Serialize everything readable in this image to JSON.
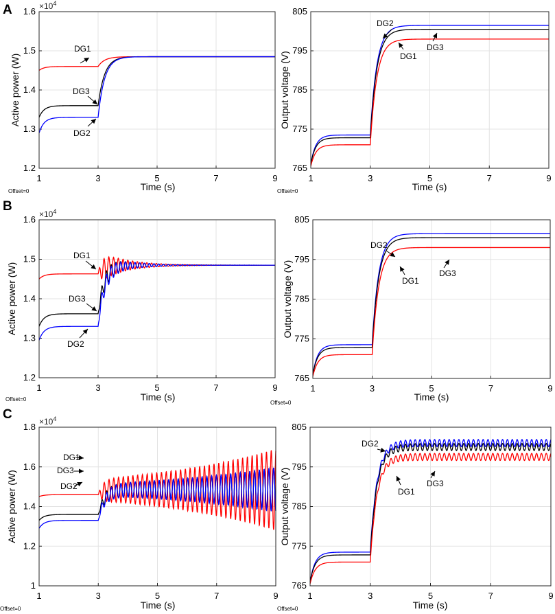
{
  "figure": {
    "description_labels": [
      "A",
      "B",
      "C"
    ]
  },
  "chart_data": [
    {
      "panel": "A",
      "side": "left",
      "type": "line",
      "scenario": "smooth",
      "xlabel": "Time (s)",
      "ylabel": "Active power (W)",
      "exponent_label": "×10^4",
      "xlim": [
        1,
        9
      ],
      "ylim": [
        1.2,
        1.6
      ],
      "xticks": [
        "1",
        "3",
        "5",
        "7",
        "9"
      ],
      "yticks": [
        "1.2",
        "1.3",
        "1.4",
        "1.5",
        "1.6"
      ],
      "offset_label": "Offset=0",
      "series": [
        {
          "name": "DG1",
          "color": "#ff0000",
          "before": 1.46,
          "start": 1.45,
          "after": 1.485
        },
        {
          "name": "DG3",
          "color": "#000000",
          "before": 1.36,
          "start": 1.33,
          "after": 1.485
        },
        {
          "name": "DG2",
          "color": "#0000ff",
          "before": 1.33,
          "start": 1.29,
          "after": 1.485
        }
      ],
      "annotations": [
        {
          "text": "DG1"
        },
        {
          "text": "DG3"
        },
        {
          "text": "DG2"
        }
      ]
    },
    {
      "panel": "A",
      "side": "right",
      "type": "line",
      "scenario": "smooth",
      "xlabel": "Time (s)",
      "ylabel": "Output voltage (V)",
      "xlim": [
        1,
        9
      ],
      "ylim": [
        765,
        805
      ],
      "xticks": [
        "1",
        "3",
        "5",
        "7",
        "9"
      ],
      "yticks": [
        "765",
        "775",
        "785",
        "795",
        "805"
      ],
      "offset_label": "Offset=0",
      "series": [
        {
          "name": "DG2",
          "color": "#0000ff",
          "before": 773.5,
          "start": 766,
          "after": 801.5
        },
        {
          "name": "DG3",
          "color": "#000000",
          "before": 772.8,
          "start": 766,
          "after": 800.5
        },
        {
          "name": "DG1",
          "color": "#ff0000",
          "before": 771,
          "start": 765.5,
          "after": 798
        }
      ],
      "annotations": [
        {
          "text": "DG2"
        },
        {
          "text": "DG1"
        },
        {
          "text": "DG3"
        }
      ]
    },
    {
      "panel": "B",
      "side": "left",
      "type": "line",
      "scenario": "damped",
      "xlabel": "Time (s)",
      "ylabel": "Active power (W)",
      "exponent_label": "×10^4",
      "xlim": [
        1,
        9
      ],
      "ylim": [
        1.2,
        1.6
      ],
      "xticks": [
        "1",
        "3",
        "5",
        "7",
        "9"
      ],
      "yticks": [
        "1.2",
        "1.3",
        "1.4",
        "1.5",
        "1.6"
      ],
      "offset_label": "Offset=0",
      "series": [
        {
          "name": "DG1",
          "color": "#ff0000",
          "before": 1.463,
          "start": 1.45,
          "after": 1.485
        },
        {
          "name": "DG3",
          "color": "#000000",
          "before": 1.362,
          "start": 1.33,
          "after": 1.485
        },
        {
          "name": "DG2",
          "color": "#0000ff",
          "before": 1.33,
          "start": 1.295,
          "after": 1.485
        }
      ],
      "annotations": [
        {
          "text": "DG1"
        },
        {
          "text": "DG3"
        },
        {
          "text": "DG2"
        }
      ]
    },
    {
      "panel": "B",
      "side": "right",
      "type": "line",
      "scenario": "smooth",
      "xlabel": "Time (s)",
      "ylabel": "Output voltage (V)",
      "xlim": [
        1,
        9
      ],
      "ylim": [
        765,
        805
      ],
      "xticks": [
        "1",
        "3",
        "5",
        "7",
        "9"
      ],
      "yticks": [
        "765",
        "775",
        "785",
        "795",
        "805"
      ],
      "offset_label": "Offset=0",
      "series": [
        {
          "name": "DG2",
          "color": "#0000ff",
          "before": 773.5,
          "start": 766,
          "after": 801.5
        },
        {
          "name": "DG3",
          "color": "#000000",
          "before": 772.8,
          "start": 766,
          "after": 800.5
        },
        {
          "name": "DG1",
          "color": "#ff0000",
          "before": 771,
          "start": 765.5,
          "after": 798
        }
      ],
      "annotations": [
        {
          "text": "DG2"
        },
        {
          "text": "DG1"
        },
        {
          "text": "DG3"
        }
      ]
    },
    {
      "panel": "C",
      "side": "left",
      "type": "line",
      "scenario": "growing",
      "xlabel": "Time (s)",
      "ylabel": "Active power (W)",
      "exponent_label": "×10^4",
      "xlim": [
        1,
        9
      ],
      "ylim": [
        1.0,
        1.8
      ],
      "xticks": [
        "1",
        "3",
        "5",
        "7",
        "9"
      ],
      "yticks": [
        "1",
        "1.2",
        "1.4",
        "1.6",
        "1.8"
      ],
      "offset_label": "Offset=0",
      "series": [
        {
          "name": "DG1",
          "color": "#ff0000",
          "before": 1.46,
          "start": 1.45,
          "after": 1.485
        },
        {
          "name": "DG3",
          "color": "#000000",
          "before": 1.36,
          "start": 1.33,
          "after": 1.485
        },
        {
          "name": "DG2",
          "color": "#0000ff",
          "before": 1.33,
          "start": 1.29,
          "after": 1.485
        }
      ],
      "annotations": [
        {
          "text": "DG1"
        },
        {
          "text": "DG3"
        },
        {
          "text": "DG2"
        }
      ]
    },
    {
      "panel": "C",
      "side": "right",
      "type": "line",
      "scenario": "ripple",
      "xlabel": "Time (s)",
      "ylabel": "Output voltage (V)",
      "xlim": [
        1,
        9
      ],
      "ylim": [
        765,
        805
      ],
      "xticks": [
        "1",
        "3",
        "5",
        "7",
        "9"
      ],
      "yticks": [
        "765",
        "775",
        "785",
        "795",
        "805"
      ],
      "offset_label": "Offset=0",
      "series": [
        {
          "name": "DG2",
          "color": "#0000ff",
          "before": 773.5,
          "start": 766,
          "after": 801
        },
        {
          "name": "DG3",
          "color": "#000000",
          "before": 772.8,
          "start": 766,
          "after": 800
        },
        {
          "name": "DG1",
          "color": "#ff0000",
          "before": 771,
          "start": 765.5,
          "after": 797.5
        }
      ],
      "annotations": [
        {
          "text": "DG2"
        },
        {
          "text": "DG1"
        },
        {
          "text": "DG3"
        }
      ]
    }
  ]
}
